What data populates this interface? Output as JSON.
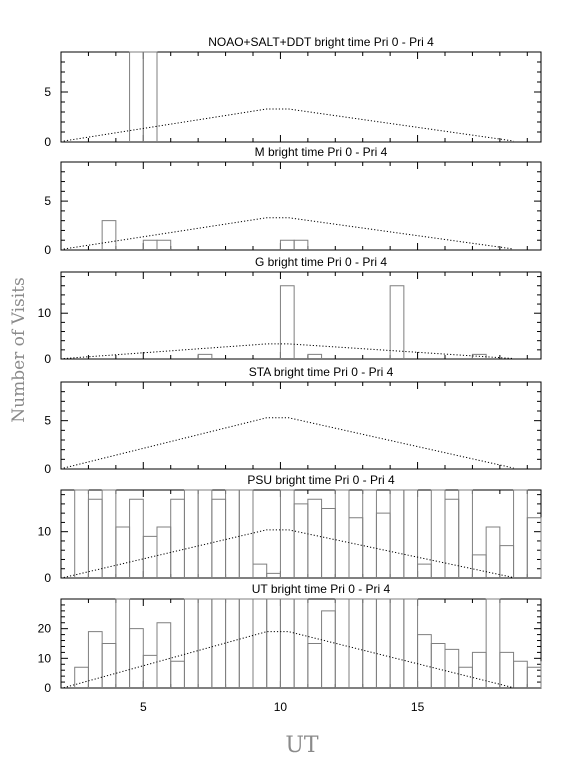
{
  "chart_data": {
    "type": "step histogram (multi-panel)",
    "ylabel": "Number of Visits",
    "xlabel": "UT",
    "xlim": [
      2,
      19.5
    ],
    "xticks": [
      5,
      10,
      15
    ],
    "bin_width": 0.5,
    "panels": [
      {
        "title": "NOAO+SALT+DDT    bright time Pri 0 - Pri 4",
        "ylim": [
          0,
          9
        ],
        "yticks": [
          0,
          5
        ],
        "bins": [
          [
            4.5,
            9
          ],
          [
            5.0,
            9
          ]
        ],
        "reference_curve": [
          [
            2.1,
            0.1
          ],
          [
            9.5,
            3.3
          ],
          [
            10.3,
            3.3
          ],
          [
            18.5,
            0.1
          ]
        ]
      },
      {
        "title": "M    bright time Pri 0 - Pri 4",
        "ylim": [
          0,
          9
        ],
        "yticks": [
          0,
          5
        ],
        "bins": [
          [
            3.5,
            3
          ],
          [
            5.0,
            1
          ],
          [
            5.5,
            1
          ],
          [
            10.0,
            1
          ],
          [
            10.5,
            1
          ]
        ],
        "reference_curve": [
          [
            2.1,
            0.1
          ],
          [
            9.5,
            3.3
          ],
          [
            10.3,
            3.3
          ],
          [
            18.5,
            0.1
          ]
        ]
      },
      {
        "title": "G    bright time Pri 0 - Pri 4",
        "ylim": [
          0,
          19
        ],
        "yticks": [
          0,
          10
        ],
        "bins": [
          [
            7.0,
            1
          ],
          [
            10.0,
            16
          ],
          [
            11.0,
            1
          ],
          [
            14.0,
            16
          ],
          [
            17.0,
            1
          ]
        ],
        "reference_curve": [
          [
            2.1,
            0.1
          ],
          [
            9.5,
            3.3
          ],
          [
            10.3,
            3.3
          ],
          [
            18.5,
            0.1
          ]
        ]
      },
      {
        "title": "STA    bright time Pri 0 - Pri 4",
        "ylim": [
          0,
          9
        ],
        "yticks": [
          0,
          5
        ],
        "bins": [],
        "reference_curve": [
          [
            2.1,
            0.1
          ],
          [
            9.5,
            5.3
          ],
          [
            10.3,
            5.3
          ],
          [
            18.5,
            0.1
          ]
        ]
      },
      {
        "title": "PSU    bright time Pri 0 - Pri 4",
        "ylim": [
          0,
          19
        ],
        "yticks": [
          0,
          10
        ],
        "bins": [
          [
            2.5,
            19
          ],
          [
            3.0,
            17
          ],
          [
            3.5,
            19
          ],
          [
            4.0,
            11
          ],
          [
            4.5,
            17
          ],
          [
            5.0,
            9
          ],
          [
            5.5,
            11
          ],
          [
            6.0,
            17
          ],
          [
            6.5,
            19
          ],
          [
            7.0,
            19
          ],
          [
            7.5,
            17
          ],
          [
            8.0,
            19
          ],
          [
            8.5,
            19
          ],
          [
            9.0,
            3
          ],
          [
            9.5,
            1
          ],
          [
            10.0,
            19
          ],
          [
            10.5,
            16
          ],
          [
            11.0,
            17
          ],
          [
            11.5,
            15
          ],
          [
            12.0,
            19
          ],
          [
            12.5,
            13
          ],
          [
            13.0,
            19
          ],
          [
            13.5,
            14
          ],
          [
            14.0,
            19
          ],
          [
            14.5,
            19
          ],
          [
            15.0,
            3
          ],
          [
            15.5,
            19
          ],
          [
            16.0,
            17
          ],
          [
            16.5,
            19
          ],
          [
            17.0,
            5
          ],
          [
            17.5,
            11
          ],
          [
            18.0,
            7
          ],
          [
            18.5,
            19
          ],
          [
            19.0,
            13
          ],
          [
            19.5,
            11
          ]
        ],
        "reference_curve": [
          [
            2.1,
            0.1
          ],
          [
            9.5,
            10.4
          ],
          [
            10.3,
            10.4
          ],
          [
            18.5,
            0.1
          ]
        ]
      },
      {
        "title": "UT    bright time Pri 0 - Pri 4",
        "ylim": [
          0,
          30
        ],
        "yticks": [
          0,
          10,
          20
        ],
        "bins": [
          [
            2.5,
            7
          ],
          [
            3.0,
            19
          ],
          [
            3.5,
            15
          ],
          [
            4.0,
            30
          ],
          [
            4.5,
            20
          ],
          [
            5.0,
            11
          ],
          [
            5.5,
            22
          ],
          [
            6.0,
            9
          ],
          [
            6.5,
            30
          ],
          [
            7.0,
            30
          ],
          [
            7.5,
            30
          ],
          [
            8.0,
            30
          ],
          [
            8.5,
            30
          ],
          [
            9.0,
            30
          ],
          [
            9.5,
            30
          ],
          [
            10.0,
            30
          ],
          [
            10.5,
            30
          ],
          [
            11.0,
            15
          ],
          [
            11.5,
            26
          ],
          [
            12.0,
            30
          ],
          [
            12.5,
            30
          ],
          [
            13.0,
            30
          ],
          [
            13.5,
            30
          ],
          [
            14.0,
            30
          ],
          [
            14.5,
            30
          ],
          [
            15.0,
            18
          ],
          [
            15.5,
            15
          ],
          [
            16.0,
            13
          ],
          [
            16.5,
            7
          ],
          [
            17.0,
            12
          ],
          [
            17.5,
            30
          ],
          [
            18.0,
            12
          ],
          [
            18.5,
            9
          ],
          [
            19.0,
            7
          ],
          [
            19.5,
            9
          ]
        ],
        "reference_curve": [
          [
            2.1,
            0.1
          ],
          [
            9.5,
            19
          ],
          [
            10.3,
            19
          ],
          [
            18.5,
            0.1
          ]
        ]
      }
    ]
  }
}
